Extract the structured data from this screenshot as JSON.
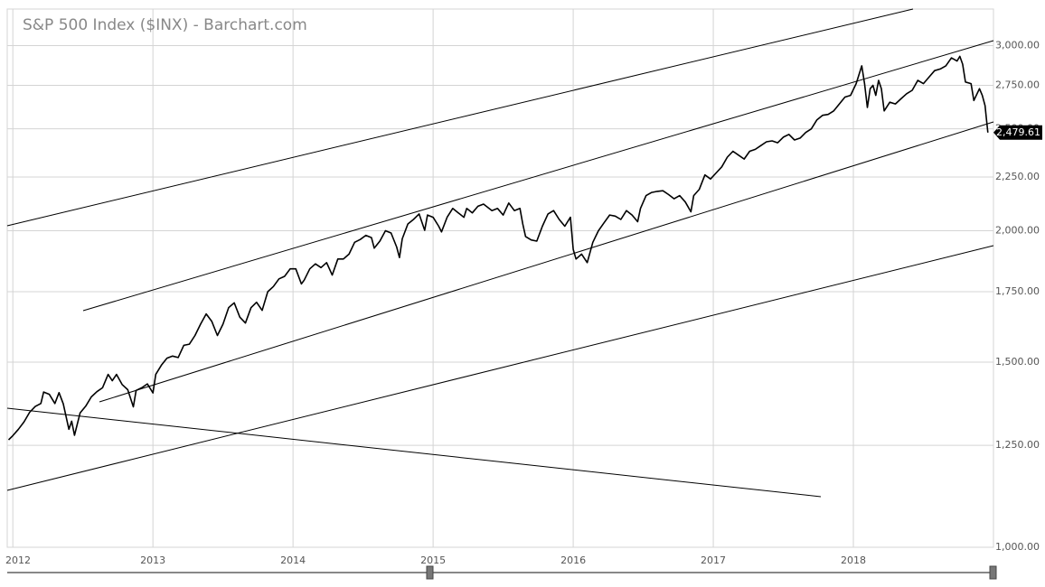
{
  "chart_data": {
    "type": "line",
    "title": "S&P 500 Index ($INX) - Barchart.com",
    "log_scale": true,
    "grid": true,
    "color": "#000000",
    "xlim": [
      2011.96,
      2019.0
    ],
    "xticks": [
      2012,
      2013,
      2014,
      2015,
      2016,
      2017,
      2018
    ],
    "ylim": [
      1000,
      3250
    ],
    "yticks": [
      {
        "value": 1000,
        "label": "1,000.00"
      },
      {
        "value": 1250,
        "label": "1,250.00"
      },
      {
        "value": 1500,
        "label": "1,500.00"
      },
      {
        "value": 1750,
        "label": "1,750.00"
      },
      {
        "value": 2000,
        "label": "2,000.00"
      },
      {
        "value": 2250,
        "label": "2,250.00"
      },
      {
        "value": 2500,
        "label": "2,500.00"
      },
      {
        "value": 2750,
        "label": "2,750.00"
      },
      {
        "value": 3000,
        "label": "3,000.00"
      }
    ],
    "last_label": {
      "value": 2479.61,
      "label": "2,479.61"
    },
    "x": [
      2011.97,
      2012.0,
      2012.04,
      2012.08,
      2012.12,
      2012.16,
      2012.2,
      2012.22,
      2012.26,
      2012.3,
      2012.33,
      2012.36,
      2012.4,
      2012.42,
      2012.44,
      2012.48,
      2012.52,
      2012.56,
      2012.6,
      2012.64,
      2012.68,
      2012.71,
      2012.74,
      2012.78,
      2012.82,
      2012.86,
      2012.88,
      2012.92,
      2012.96,
      2013.0,
      2013.02,
      2013.06,
      2013.1,
      2013.14,
      2013.18,
      2013.22,
      2013.26,
      2013.3,
      2013.34,
      2013.38,
      2013.42,
      2013.46,
      2013.5,
      2013.54,
      2013.58,
      2013.62,
      2013.66,
      2013.7,
      2013.74,
      2013.78,
      2013.82,
      2013.86,
      2013.9,
      2013.94,
      2013.98,
      2014.02,
      2014.06,
      2014.08,
      2014.12,
      2014.16,
      2014.2,
      2014.24,
      2014.28,
      2014.32,
      2014.36,
      2014.4,
      2014.44,
      2014.48,
      2014.52,
      2014.56,
      2014.58,
      2014.62,
      2014.66,
      2014.7,
      2014.74,
      2014.76,
      2014.78,
      2014.82,
      2014.86,
      2014.9,
      2014.94,
      2014.96,
      2015.0,
      2015.04,
      2015.06,
      2015.1,
      2015.14,
      2015.18,
      2015.22,
      2015.24,
      2015.28,
      2015.32,
      2015.36,
      2015.42,
      2015.46,
      2015.5,
      2015.54,
      2015.58,
      2015.62,
      2015.64,
      2015.66,
      2015.7,
      2015.74,
      2015.78,
      2015.82,
      2015.86,
      2015.9,
      2015.94,
      2015.98,
      2016.0,
      2016.02,
      2016.06,
      2016.1,
      2016.14,
      2016.18,
      2016.22,
      2016.26,
      2016.3,
      2016.34,
      2016.38,
      2016.42,
      2016.46,
      2016.48,
      2016.52,
      2016.56,
      2016.6,
      2016.64,
      2016.68,
      2016.72,
      2016.76,
      2016.8,
      2016.84,
      2016.86,
      2016.9,
      2016.94,
      2016.98,
      2017.02,
      2017.06,
      2017.1,
      2017.14,
      2017.18,
      2017.22,
      2017.26,
      2017.3,
      2017.34,
      2017.38,
      2017.42,
      2017.46,
      2017.5,
      2017.54,
      2017.58,
      2017.62,
      2017.66,
      2017.7,
      2017.74,
      2017.78,
      2017.82,
      2017.86,
      2017.9,
      2017.94,
      2017.98,
      2018.02,
      2018.06,
      2018.08,
      2018.1,
      2018.12,
      2018.14,
      2018.16,
      2018.18,
      2018.2,
      2018.22,
      2018.26,
      2018.3,
      2018.34,
      2018.38,
      2018.42,
      2018.46,
      2018.5,
      2018.54,
      2018.58,
      2018.62,
      2018.66,
      2018.7,
      2018.74,
      2018.76,
      2018.78,
      2018.8,
      2018.84,
      2018.86,
      2018.9,
      2018.92,
      2018.94,
      2018.95,
      2018.96
    ],
    "values": [
      1265,
      1277,
      1295,
      1316,
      1344,
      1361,
      1370,
      1405,
      1398,
      1370,
      1403,
      1369,
      1295,
      1318,
      1278,
      1342,
      1362,
      1390,
      1406,
      1418,
      1460,
      1440,
      1460,
      1428,
      1412,
      1360,
      1410,
      1418,
      1430,
      1402,
      1460,
      1490,
      1513,
      1520,
      1515,
      1556,
      1560,
      1590,
      1630,
      1667,
      1640,
      1590,
      1630,
      1690,
      1708,
      1655,
      1634,
      1690,
      1710,
      1680,
      1750,
      1770,
      1800,
      1810,
      1840,
      1840,
      1780,
      1795,
      1840,
      1860,
      1845,
      1865,
      1815,
      1880,
      1880,
      1900,
      1950,
      1962,
      1980,
      1970,
      1925,
      1955,
      2000,
      1990,
      1930,
      1886,
      1965,
      2030,
      2050,
      2075,
      2002,
      2070,
      2060,
      2020,
      1995,
      2060,
      2100,
      2080,
      2060,
      2100,
      2080,
      2110,
      2120,
      2090,
      2100,
      2070,
      2125,
      2090,
      2100,
      2030,
      1975,
      1960,
      1955,
      2020,
      2075,
      2090,
      2050,
      2020,
      2060,
      1920,
      1880,
      1900,
      1865,
      1950,
      2000,
      2035,
      2070,
      2065,
      2050,
      2090,
      2070,
      2040,
      2100,
      2160,
      2175,
      2180,
      2183,
      2165,
      2145,
      2160,
      2130,
      2085,
      2160,
      2190,
      2260,
      2240,
      2270,
      2300,
      2350,
      2380,
      2360,
      2340,
      2380,
      2390,
      2410,
      2430,
      2435,
      2425,
      2455,
      2470,
      2440,
      2450,
      2480,
      2500,
      2550,
      2575,
      2580,
      2600,
      2640,
      2680,
      2690,
      2760,
      2870,
      2760,
      2620,
      2730,
      2750,
      2690,
      2780,
      2730,
      2600,
      2650,
      2640,
      2670,
      2700,
      2720,
      2780,
      2760,
      2800,
      2840,
      2850,
      2870,
      2920,
      2900,
      2930,
      2880,
      2770,
      2760,
      2660,
      2730,
      2690,
      2630,
      2550,
      2479.61
    ]
  }
}
